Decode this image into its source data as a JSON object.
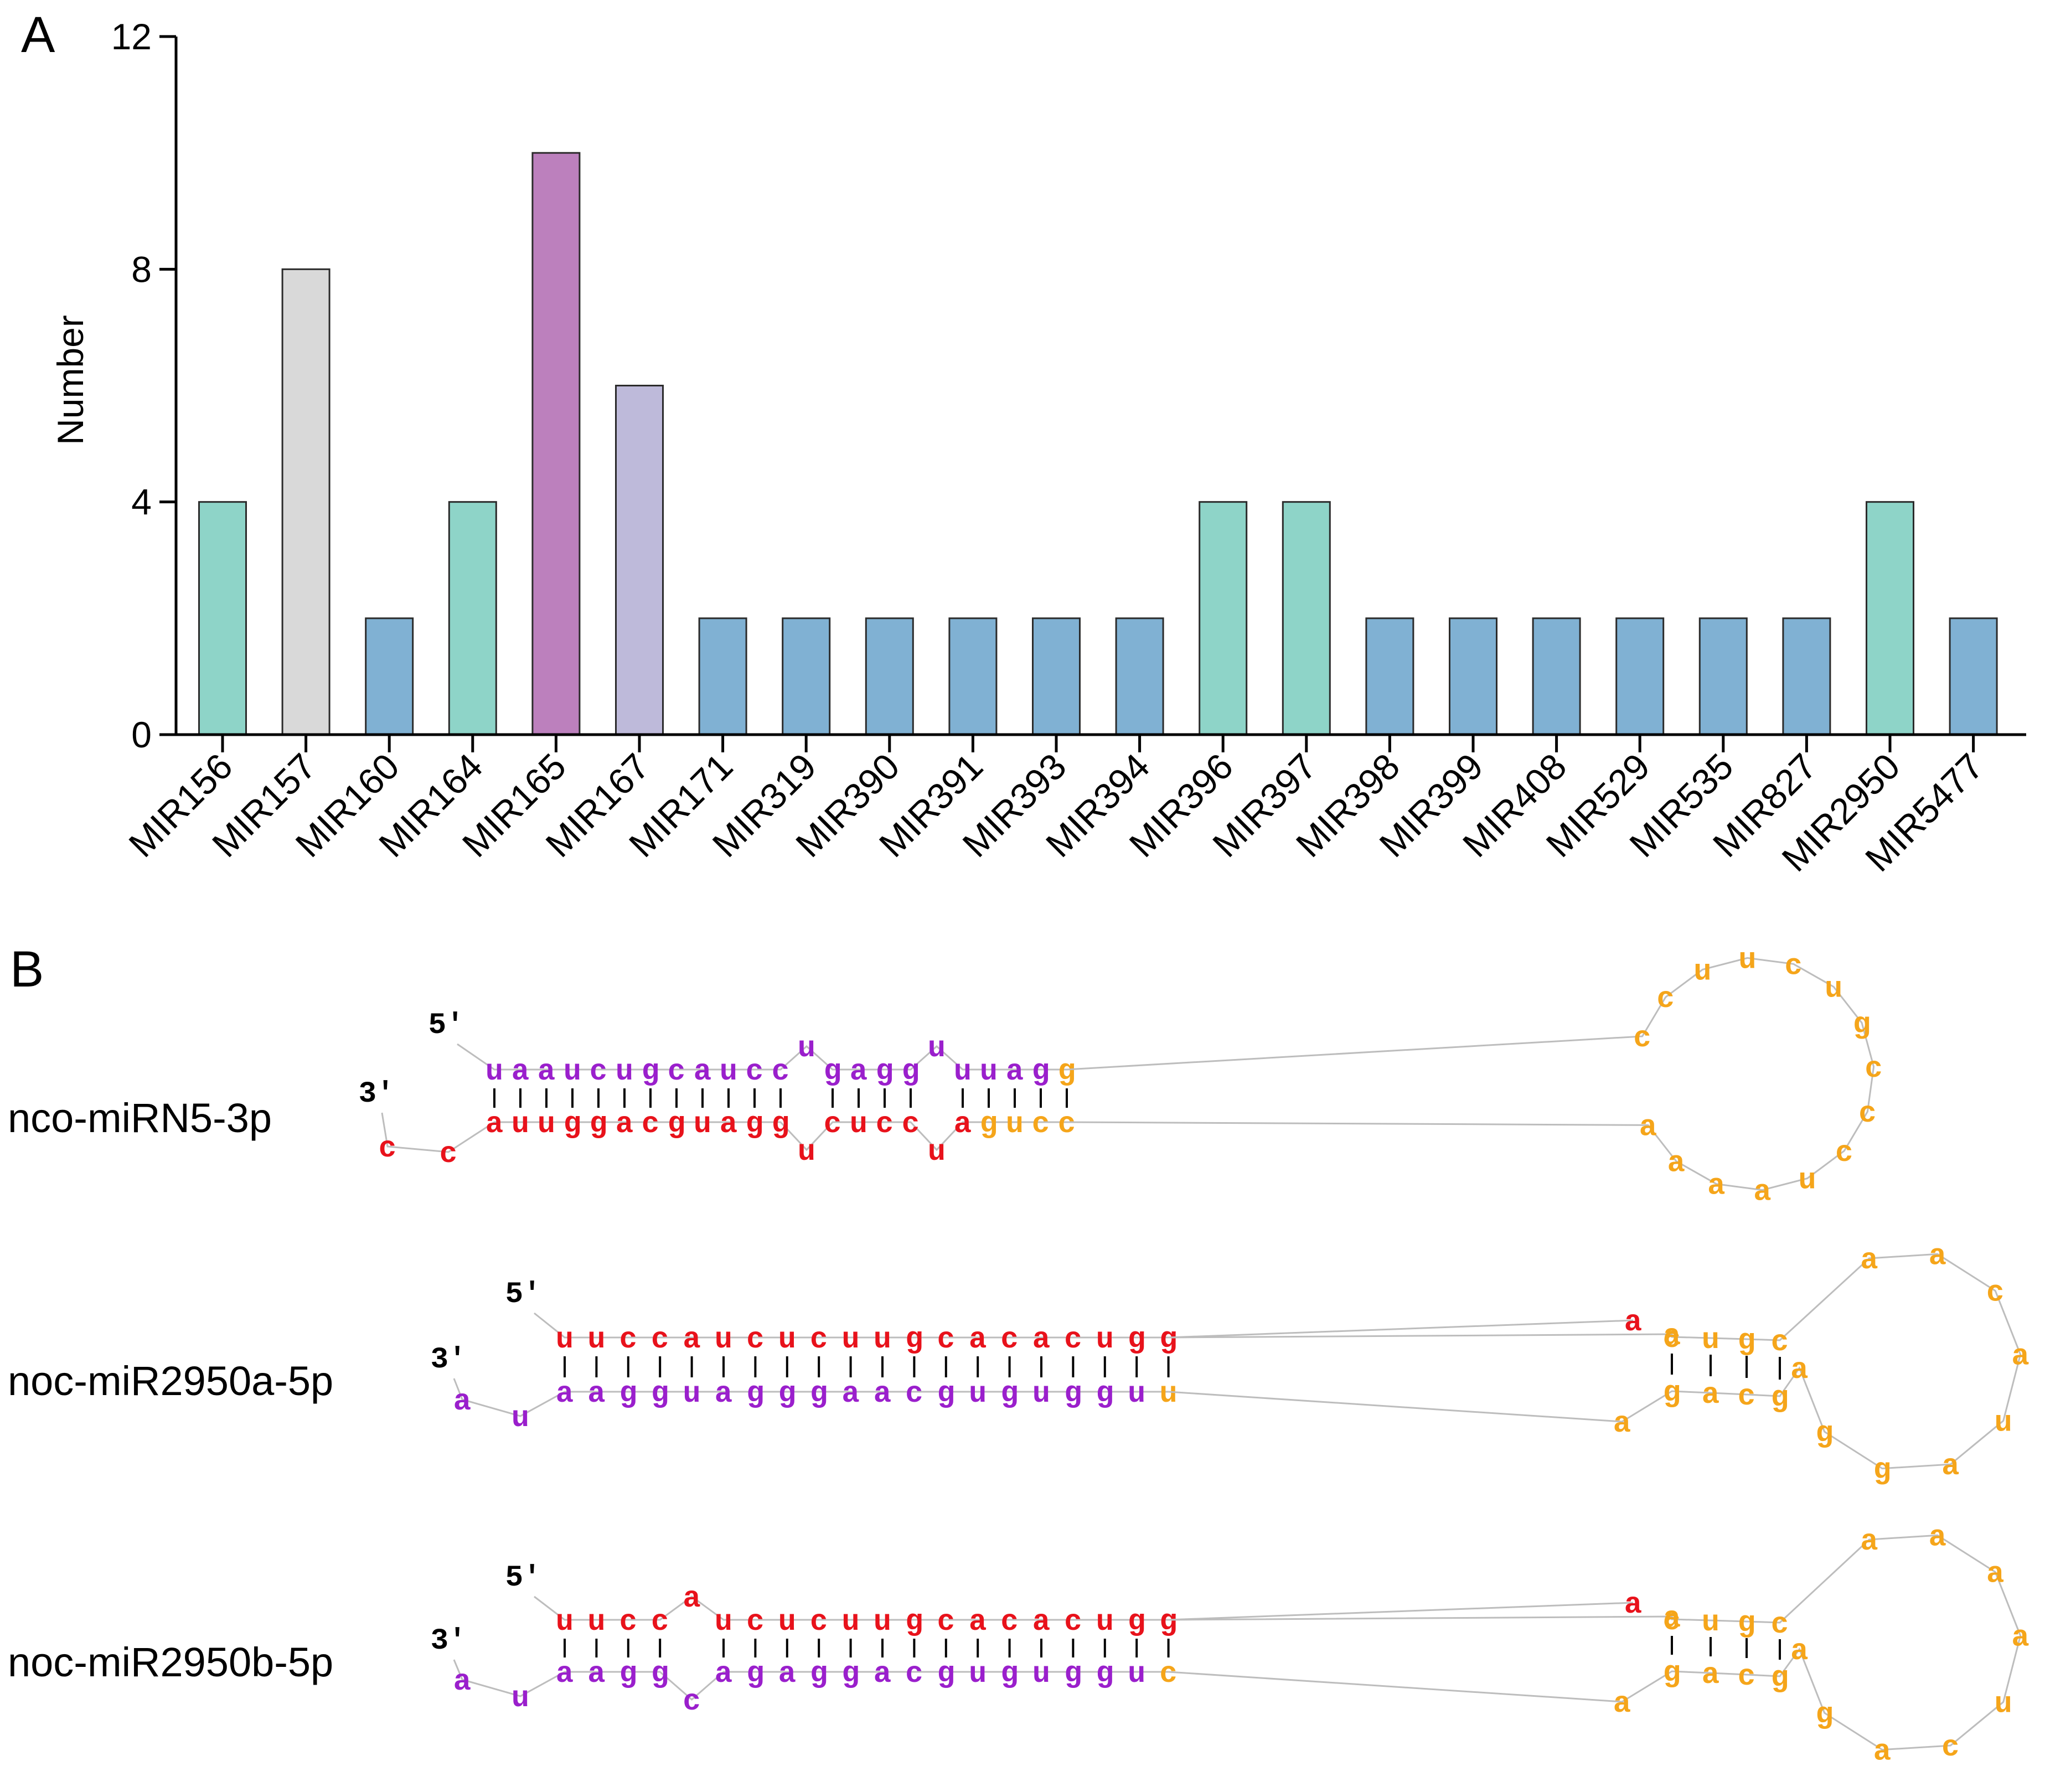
{
  "panel_a_label": "A",
  "panel_b_label": "B",
  "colors": {
    "teal": "#8ed4c8",
    "grey": "#d9d9d9",
    "blue": "#80b1d3",
    "purple": "#bc80bd",
    "lavender": "#bebada",
    "nt_red": "#e8121b",
    "nt_purple": "#9a1fcc",
    "nt_orange": "#f5a51a"
  },
  "chart_data": {
    "type": "bar",
    "title": "",
    "xlabel": "",
    "ylabel": "Number",
    "ylim": [
      0,
      12
    ],
    "yticks": [
      0,
      4,
      8,
      12
    ],
    "ytick_labels": [
      "0",
      "4",
      "8",
      "12"
    ],
    "grid": false,
    "categories": [
      "MIR156",
      "MIR157",
      "MIR160",
      "MIR164",
      "MIR165",
      "MIR167",
      "MIR171",
      "MIR319",
      "MIR390",
      "MIR391",
      "MIR393",
      "MIR394",
      "MIR396",
      "MIR397",
      "MIR398",
      "MIR399",
      "MIR408",
      "MIR529",
      "MIR535",
      "MIR827",
      "MIR2950",
      "MIR5477"
    ],
    "values": [
      4,
      8,
      2,
      4,
      10,
      6,
      2,
      2,
      2,
      2,
      2,
      2,
      4,
      4,
      2,
      2,
      2,
      2,
      2,
      2,
      4,
      2
    ],
    "bar_colors": [
      "teal",
      "grey",
      "blue",
      "teal",
      "purple",
      "lavender",
      "blue",
      "blue",
      "blue",
      "blue",
      "blue",
      "blue",
      "teal",
      "teal",
      "blue",
      "blue",
      "blue",
      "blue",
      "blue",
      "blue",
      "teal",
      "blue"
    ]
  },
  "structures": [
    {
      "name": "nco-miRN5-3p",
      "five_prime": "5'",
      "three_prime": "3'",
      "top": [
        {
          "n": "u",
          "c": "p"
        },
        {
          "n": "a",
          "c": "p"
        },
        {
          "n": "a",
          "c": "p"
        },
        {
          "n": "u",
          "c": "p"
        },
        {
          "n": "c",
          "c": "p"
        },
        {
          "n": "u",
          "c": "p"
        },
        {
          "n": "g",
          "c": "p"
        },
        {
          "n": "c",
          "c": "p"
        },
        {
          "n": "a",
          "c": "p"
        },
        {
          "n": "u",
          "c": "p"
        },
        {
          "n": "c",
          "c": "p"
        },
        {
          "n": "c",
          "c": "p"
        },
        {
          "n": "u",
          "c": "p",
          "bulge": true
        },
        {
          "n": "g",
          "c": "p"
        },
        {
          "n": "a",
          "c": "p"
        },
        {
          "n": "g",
          "c": "p"
        },
        {
          "n": "g",
          "c": "p"
        },
        {
          "n": "u",
          "c": "p",
          "bulge": true
        },
        {
          "n": "u",
          "c": "p"
        },
        {
          "n": "u",
          "c": "p"
        },
        {
          "n": "a",
          "c": "p"
        },
        {
          "n": "g",
          "c": "p"
        },
        {
          "n": "g",
          "c": "o"
        }
      ],
      "bottom": [
        {
          "n": "a",
          "c": "r"
        },
        {
          "n": "u",
          "c": "r"
        },
        {
          "n": "u",
          "c": "r"
        },
        {
          "n": "g",
          "c": "r"
        },
        {
          "n": "g",
          "c": "r"
        },
        {
          "n": "a",
          "c": "r"
        },
        {
          "n": "c",
          "c": "r"
        },
        {
          "n": "g",
          "c": "r"
        },
        {
          "n": "u",
          "c": "r"
        },
        {
          "n": "a",
          "c": "r"
        },
        {
          "n": "g",
          "c": "r"
        },
        {
          "n": "g",
          "c": "r"
        },
        {
          "n": "u",
          "c": "r",
          "bulge": true
        },
        {
          "n": "c",
          "c": "r"
        },
        {
          "n": "u",
          "c": "r"
        },
        {
          "n": "c",
          "c": "r"
        },
        {
          "n": "c",
          "c": "r"
        },
        {
          "n": "u",
          "c": "r",
          "bulge": true
        },
        {
          "n": "a",
          "c": "r"
        },
        {
          "n": "g",
          "c": "o"
        },
        {
          "n": "u",
          "c": "o"
        },
        {
          "n": "c",
          "c": "o"
        },
        {
          "n": "c",
          "c": "o"
        }
      ],
      "tail": [
        {
          "n": "c",
          "c": "r"
        },
        {
          "n": "c",
          "c": "r"
        }
      ],
      "loop": [
        {
          "n": "c",
          "c": "o"
        },
        {
          "n": "c",
          "c": "o"
        },
        {
          "n": "u",
          "c": "o"
        },
        {
          "n": "u",
          "c": "o"
        },
        {
          "n": "c",
          "c": "o"
        },
        {
          "n": "u",
          "c": "o"
        },
        {
          "n": "g",
          "c": "o"
        },
        {
          "n": "c",
          "c": "o"
        },
        {
          "n": "c",
          "c": "o"
        },
        {
          "n": "c",
          "c": "o"
        },
        {
          "n": "u",
          "c": "o"
        },
        {
          "n": "a",
          "c": "o"
        },
        {
          "n": "a",
          "c": "o"
        },
        {
          "n": "a",
          "c": "o"
        },
        {
          "n": "a",
          "c": "o"
        }
      ]
    },
    {
      "name": "noc-miR2950a-5p",
      "five_prime": "5'",
      "three_prime": "3'",
      "top": [
        {
          "n": "u",
          "c": "r"
        },
        {
          "n": "u",
          "c": "r"
        },
        {
          "n": "c",
          "c": "r"
        },
        {
          "n": "c",
          "c": "r"
        },
        {
          "n": "a",
          "c": "r"
        },
        {
          "n": "u",
          "c": "r"
        },
        {
          "n": "c",
          "c": "r"
        },
        {
          "n": "u",
          "c": "r"
        },
        {
          "n": "c",
          "c": "r"
        },
        {
          "n": "u",
          "c": "r"
        },
        {
          "n": "u",
          "c": "r"
        },
        {
          "n": "g",
          "c": "r"
        },
        {
          "n": "c",
          "c": "r"
        },
        {
          "n": "a",
          "c": "r"
        },
        {
          "n": "c",
          "c": "r"
        },
        {
          "n": "a",
          "c": "r"
        },
        {
          "n": "c",
          "c": "r"
        },
        {
          "n": "u",
          "c": "r"
        },
        {
          "n": "g",
          "c": "r"
        },
        {
          "n": "g",
          "c": "r"
        }
      ],
      "bottom": [
        {
          "n": "a",
          "c": "p"
        },
        {
          "n": "a",
          "c": "p"
        },
        {
          "n": "g",
          "c": "p"
        },
        {
          "n": "g",
          "c": "p"
        },
        {
          "n": "u",
          "c": "p"
        },
        {
          "n": "a",
          "c": "p"
        },
        {
          "n": "g",
          "c": "p"
        },
        {
          "n": "g",
          "c": "p"
        },
        {
          "n": "g",
          "c": "p"
        },
        {
          "n": "a",
          "c": "p"
        },
        {
          "n": "a",
          "c": "p"
        },
        {
          "n": "c",
          "c": "p"
        },
        {
          "n": "g",
          "c": "p"
        },
        {
          "n": "u",
          "c": "p"
        },
        {
          "n": "g",
          "c": "p"
        },
        {
          "n": "u",
          "c": "p"
        },
        {
          "n": "g",
          "c": "p"
        },
        {
          "n": "g",
          "c": "p"
        },
        {
          "n": "u",
          "c": "p"
        },
        {
          "n": "u",
          "c": "o"
        }
      ],
      "tail": [
        {
          "n": "u",
          "c": "p"
        },
        {
          "n": "a",
          "c": "p"
        }
      ],
      "inner_top": [
        {
          "n": "c",
          "c": "o"
        },
        {
          "n": "u",
          "c": "o"
        },
        {
          "n": "g",
          "c": "o"
        },
        {
          "n": "c",
          "c": "o"
        }
      ],
      "inner_bottom": [
        {
          "n": "g",
          "c": "o"
        },
        {
          "n": "a",
          "c": "o"
        },
        {
          "n": "c",
          "c": "o"
        },
        {
          "n": "g",
          "c": "o"
        }
      ],
      "internal_top": [
        {
          "n": "a",
          "c": "r"
        },
        {
          "n": "a",
          "c": "o"
        }
      ],
      "internal_bottom": [
        {
          "n": "a",
          "c": "o"
        }
      ],
      "loop": [
        {
          "n": "a",
          "c": "o"
        },
        {
          "n": "a",
          "c": "o"
        },
        {
          "n": "c",
          "c": "o"
        },
        {
          "n": "a",
          "c": "o"
        },
        {
          "n": "u",
          "c": "o"
        },
        {
          "n": "a",
          "c": "o"
        },
        {
          "n": "g",
          "c": "o"
        },
        {
          "n": "g",
          "c": "o"
        },
        {
          "n": "a",
          "c": "o"
        }
      ]
    },
    {
      "name": "noc-miR2950b-5p",
      "five_prime": "5'",
      "three_prime": "3'",
      "top": [
        {
          "n": "u",
          "c": "r"
        },
        {
          "n": "u",
          "c": "r"
        },
        {
          "n": "c",
          "c": "r"
        },
        {
          "n": "c",
          "c": "r"
        },
        {
          "n": "a",
          "c": "r",
          "bulge": true
        },
        {
          "n": "u",
          "c": "r"
        },
        {
          "n": "c",
          "c": "r"
        },
        {
          "n": "u",
          "c": "r"
        },
        {
          "n": "c",
          "c": "r"
        },
        {
          "n": "u",
          "c": "r"
        },
        {
          "n": "u",
          "c": "r"
        },
        {
          "n": "g",
          "c": "r"
        },
        {
          "n": "c",
          "c": "r"
        },
        {
          "n": "a",
          "c": "r"
        },
        {
          "n": "c",
          "c": "r"
        },
        {
          "n": "a",
          "c": "r"
        },
        {
          "n": "c",
          "c": "r"
        },
        {
          "n": "u",
          "c": "r"
        },
        {
          "n": "g",
          "c": "r"
        },
        {
          "n": "g",
          "c": "r"
        }
      ],
      "bottom": [
        {
          "n": "a",
          "c": "p"
        },
        {
          "n": "a",
          "c": "p"
        },
        {
          "n": "g",
          "c": "p"
        },
        {
          "n": "g",
          "c": "p"
        },
        {
          "n": "c",
          "c": "p",
          "bulge": true
        },
        {
          "n": "a",
          "c": "p"
        },
        {
          "n": "g",
          "c": "p"
        },
        {
          "n": "a",
          "c": "p"
        },
        {
          "n": "g",
          "c": "p"
        },
        {
          "n": "g",
          "c": "p"
        },
        {
          "n": "a",
          "c": "p"
        },
        {
          "n": "c",
          "c": "p"
        },
        {
          "n": "g",
          "c": "p"
        },
        {
          "n": "u",
          "c": "p"
        },
        {
          "n": "g",
          "c": "p"
        },
        {
          "n": "u",
          "c": "p"
        },
        {
          "n": "g",
          "c": "p"
        },
        {
          "n": "g",
          "c": "p"
        },
        {
          "n": "u",
          "c": "p"
        },
        {
          "n": "c",
          "c": "o"
        }
      ],
      "tail": [
        {
          "n": "u",
          "c": "p"
        },
        {
          "n": "a",
          "c": "p"
        }
      ],
      "inner_top": [
        {
          "n": "c",
          "c": "o"
        },
        {
          "n": "u",
          "c": "o"
        },
        {
          "n": "g",
          "c": "o"
        },
        {
          "n": "c",
          "c": "o"
        }
      ],
      "inner_bottom": [
        {
          "n": "g",
          "c": "o"
        },
        {
          "n": "a",
          "c": "o"
        },
        {
          "n": "c",
          "c": "o"
        },
        {
          "n": "g",
          "c": "o"
        }
      ],
      "internal_top": [
        {
          "n": "a",
          "c": "r"
        },
        {
          "n": "a",
          "c": "o"
        }
      ],
      "internal_bottom": [
        {
          "n": "a",
          "c": "o"
        }
      ],
      "loop": [
        {
          "n": "a",
          "c": "o"
        },
        {
          "n": "a",
          "c": "o"
        },
        {
          "n": "a",
          "c": "o"
        },
        {
          "n": "a",
          "c": "o"
        },
        {
          "n": "u",
          "c": "o"
        },
        {
          "n": "c",
          "c": "o"
        },
        {
          "n": "a",
          "c": "o"
        },
        {
          "n": "g",
          "c": "o"
        },
        {
          "n": "a",
          "c": "o"
        }
      ]
    }
  ]
}
